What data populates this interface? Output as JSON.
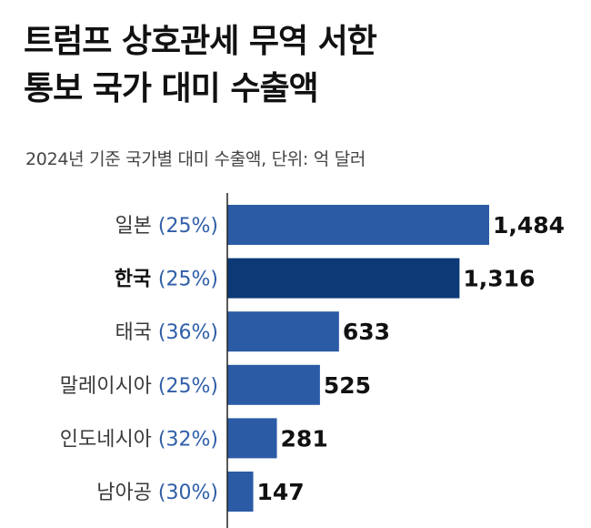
{
  "title_lines": [
    "트럼프 상호관세 무역 서한",
    "통보 국가 대미 수출액"
  ],
  "subtitle": "2024년 기준 국가별 대미 수출액, 단위: 억 달러",
  "colors": {
    "bar": "#2c5ba6",
    "highlight": "#0c3a77",
    "axis": "#222222",
    "percent": "#2f5ea8"
  },
  "chart_data": {
    "type": "bar",
    "orientation": "horizontal",
    "title": "트럼프 상호관세 무역 서한 통보 국가 대미 수출액",
    "subtitle": "2024년 기준 국가별 대미 수출액, 단위: 억 달러",
    "highlight": "한국",
    "categories": [
      "일본",
      "한국",
      "태국",
      "말레이시아",
      "인도네시아",
      "남아공"
    ],
    "percent_labels": [
      "(25%)",
      "(25%)",
      "(36%)",
      "(25%)",
      "(32%)",
      "(30%)"
    ],
    "values": [
      1484,
      1316,
      633,
      525,
      281,
      147
    ],
    "value_labels": [
      "1,484",
      "1,316",
      "633",
      "525",
      "281",
      "147"
    ],
    "xlim": [
      0,
      1484
    ],
    "grid": false
  }
}
